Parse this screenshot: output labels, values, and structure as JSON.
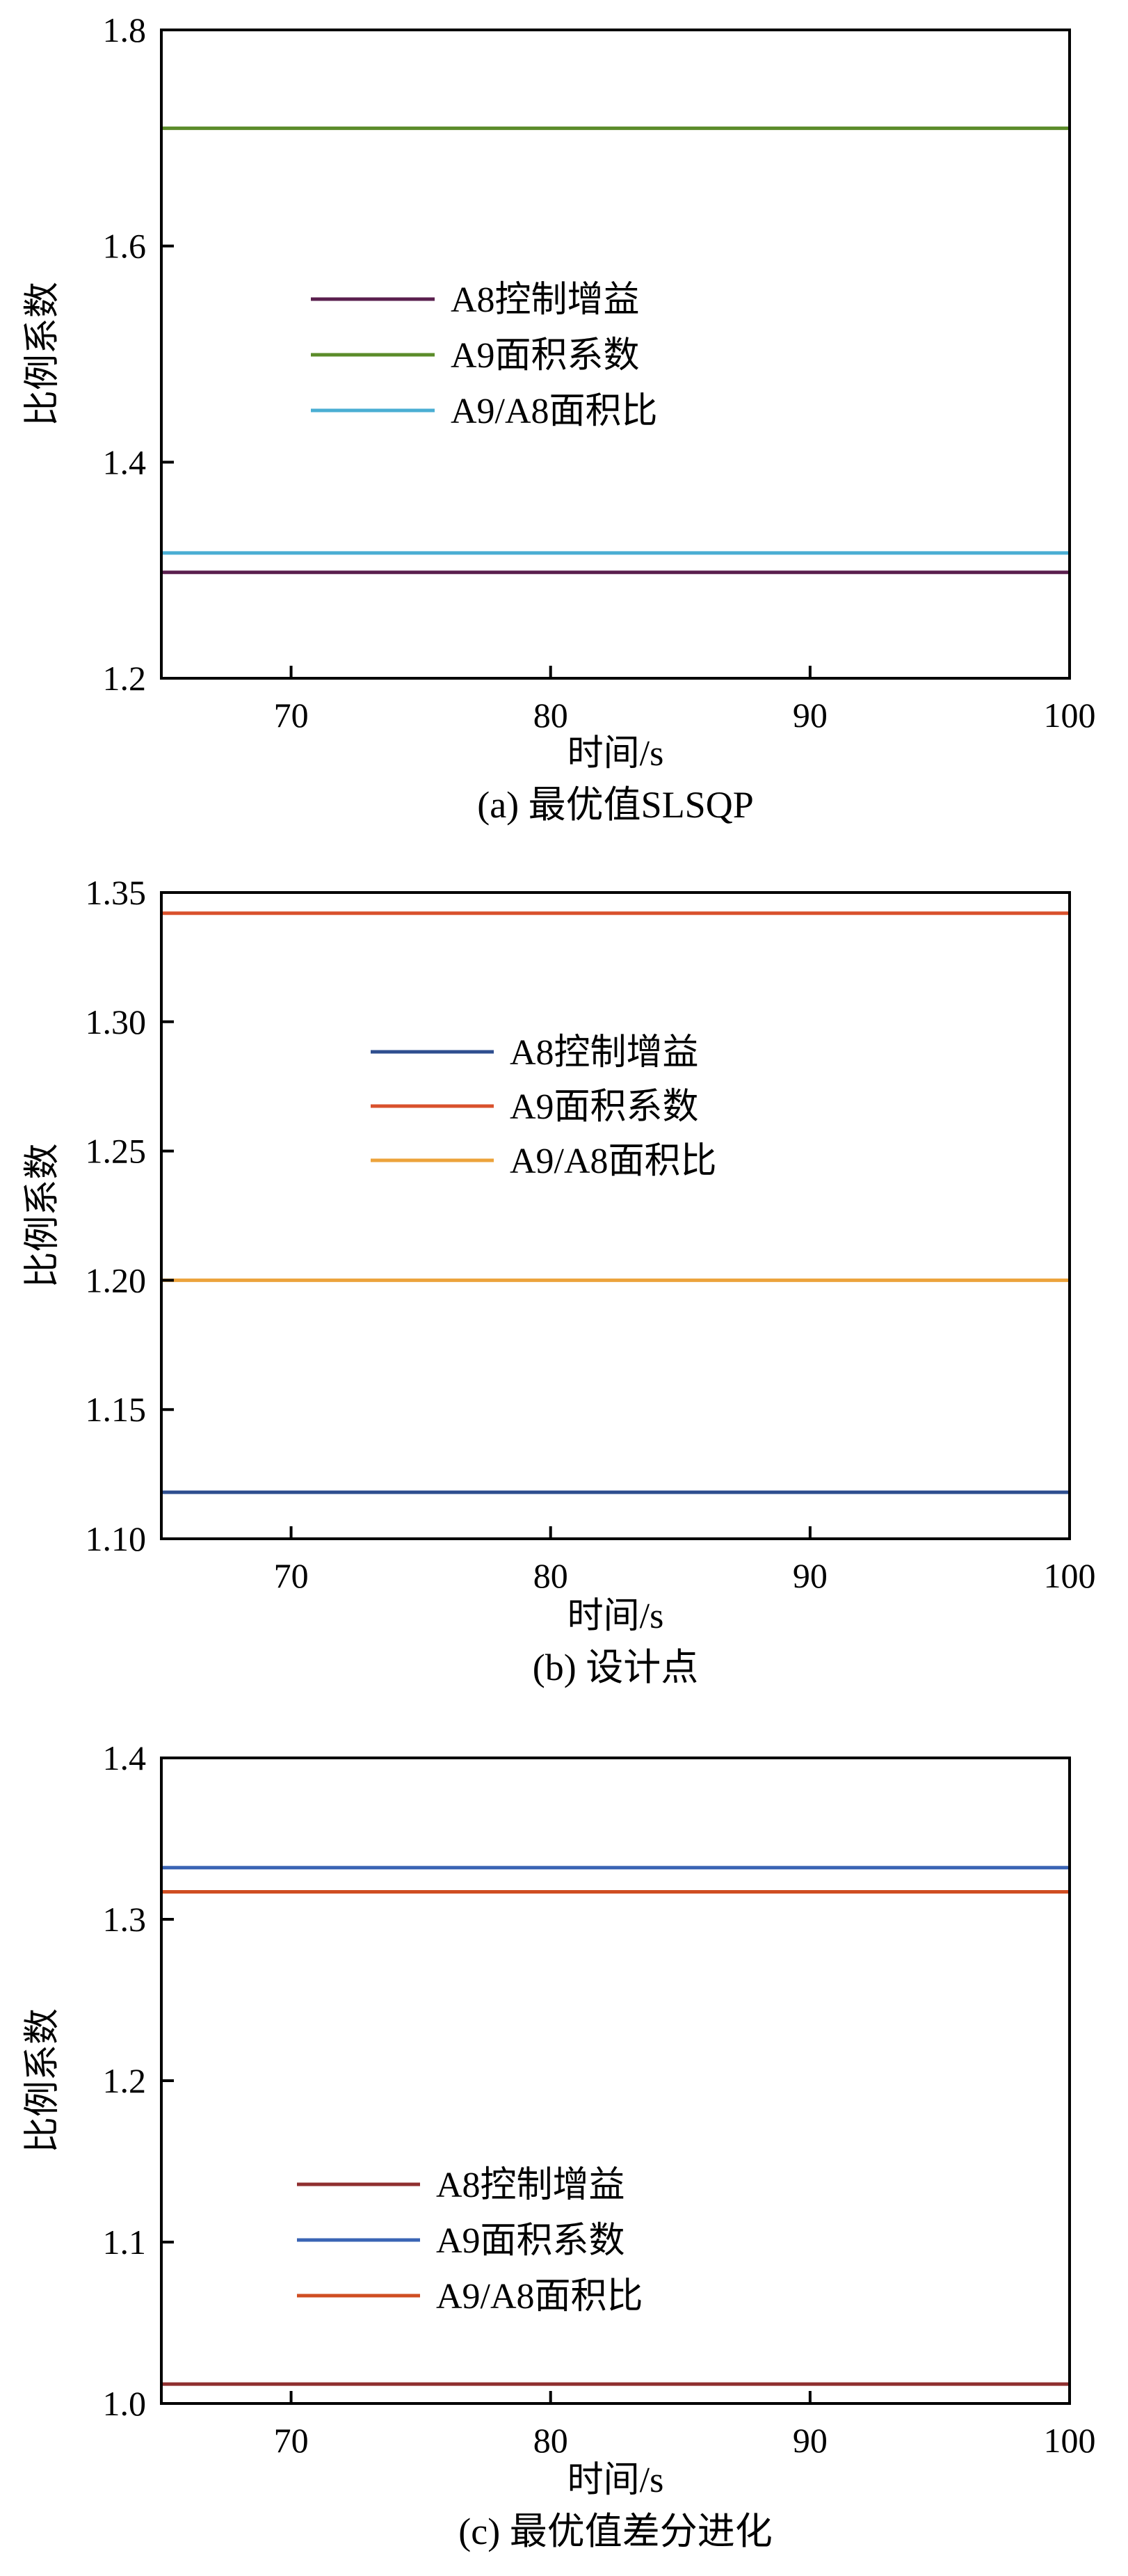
{
  "chart_data": [
    {
      "type": "line",
      "caption": "(a) 最优值SLSQP",
      "xlabel": "时间/s",
      "ylabel": "比例系数",
      "xlim": [
        65,
        100
      ],
      "ylim": [
        1.2,
        1.8
      ],
      "xticks": [
        "70",
        "80",
        "90",
        "100"
      ],
      "yticks": [
        "1.2",
        "1.4",
        "1.6",
        "1.8"
      ],
      "legend": "upper-left-center",
      "series": [
        {
          "name": "A8控制增益",
          "color": "#5a1f4e",
          "x": [
            65,
            100
          ],
          "y": [
            1.298,
            1.298
          ]
        },
        {
          "name": "A9面积系数",
          "color": "#5b8c2a",
          "x": [
            65,
            100
          ],
          "y": [
            1.709,
            1.709
          ]
        },
        {
          "name": "A9/A8面积比",
          "color": "#4aaed3",
          "x": [
            65,
            100
          ],
          "y": [
            1.316,
            1.316
          ]
        }
      ]
    },
    {
      "type": "line",
      "caption": "(b) 设计点",
      "xlabel": "时间/s",
      "ylabel": "比例系数",
      "xlim": [
        65,
        100
      ],
      "ylim": [
        1.1,
        1.35
      ],
      "xticks": [
        "70",
        "80",
        "90",
        "100"
      ],
      "yticks": [
        "1.10",
        "1.15",
        "1.20",
        "1.25",
        "1.30",
        "1.35"
      ],
      "legend": "upper-center",
      "series": [
        {
          "name": "A8控制增益",
          "color": "#2e4e8f",
          "x": [
            65,
            100
          ],
          "y": [
            1.118,
            1.118
          ]
        },
        {
          "name": "A9面积系数",
          "color": "#d9512c",
          "x": [
            65,
            100
          ],
          "y": [
            1.342,
            1.342
          ]
        },
        {
          "name": "A9/A8面积比",
          "color": "#eca33b",
          "x": [
            65,
            100
          ],
          "y": [
            1.2,
            1.2
          ]
        }
      ]
    },
    {
      "type": "line",
      "caption": "(c) 最优值差分进化",
      "xlabel": "时间/s",
      "ylabel": "比例系数",
      "xlim": [
        65,
        100
      ],
      "ylim": [
        1.0,
        1.4
      ],
      "xticks": [
        "70",
        "80",
        "90",
        "100"
      ],
      "yticks": [
        "1.0",
        "1.1",
        "1.2",
        "1.3",
        "1.4"
      ],
      "legend": "lower-left-center",
      "series": [
        {
          "name": "A8控制增益",
          "color": "#8f2f2f",
          "x": [
            65,
            100
          ],
          "y": [
            1.012,
            1.012
          ]
        },
        {
          "name": "A9面积系数",
          "color": "#3a64b4",
          "x": [
            65,
            100
          ],
          "y": [
            1.332,
            1.332
          ]
        },
        {
          "name": "A9/A8面积比",
          "color": "#cf4e22",
          "x": [
            65,
            100
          ],
          "y": [
            1.317,
            1.317
          ]
        }
      ]
    }
  ]
}
